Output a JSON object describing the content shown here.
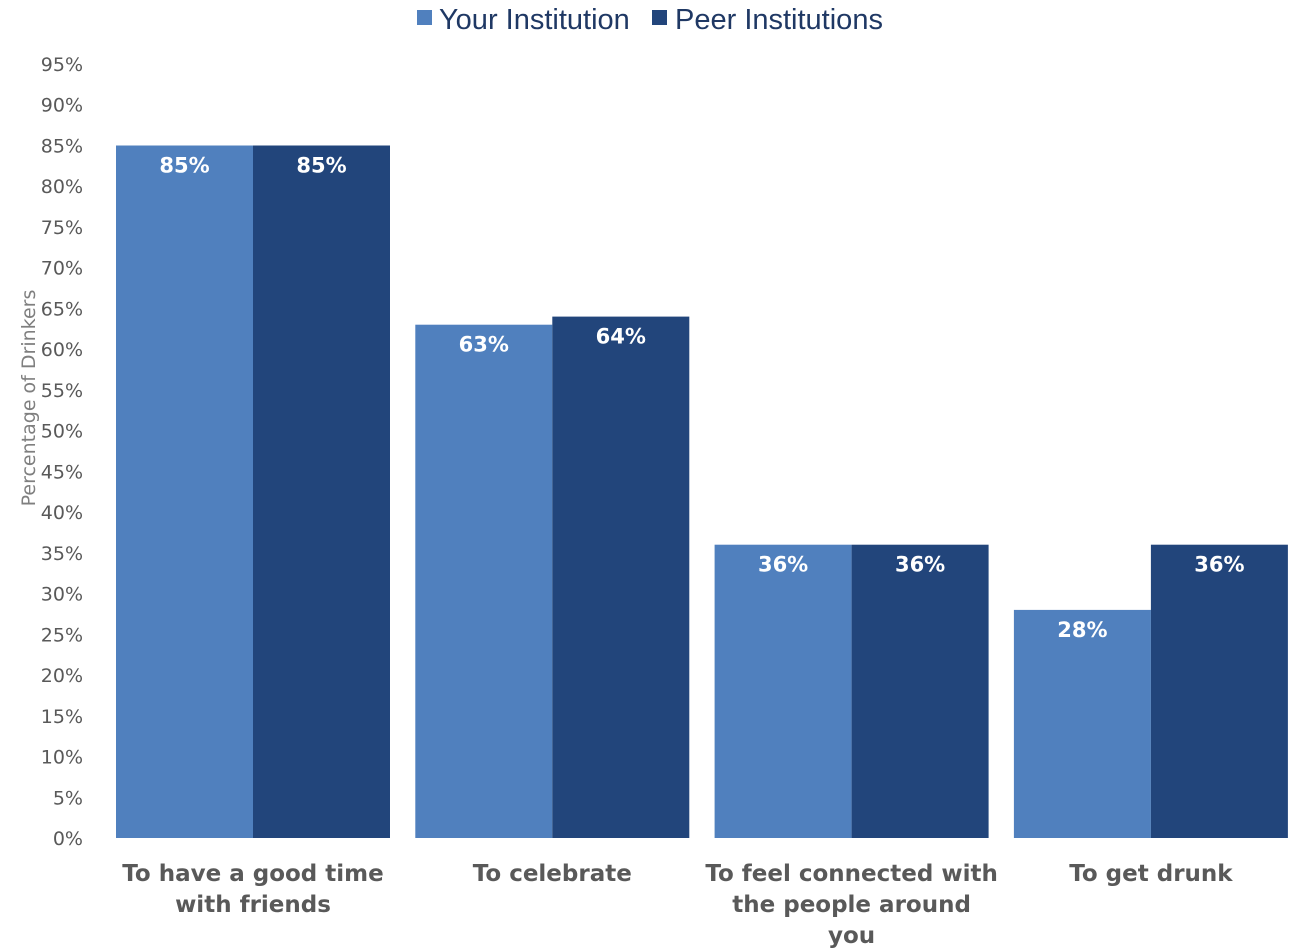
{
  "chart_data": {
    "type": "bar",
    "ylabel": "Percentage of Drinkers",
    "ylim": [
      0,
      95
    ],
    "ytick_step": 5,
    "y_format": "percent",
    "legend_position": "top-center",
    "grid": false,
    "categories": [
      [
        "To have a good time",
        "with friends"
      ],
      [
        "To celebrate"
      ],
      [
        "To feel connected with",
        "the people around",
        "you"
      ],
      [
        "To get drunk"
      ]
    ],
    "series": [
      {
        "name": "Your Institution",
        "color": "#5080be",
        "values": [
          85,
          63,
          36,
          28
        ]
      },
      {
        "name": "Peer Institutions",
        "color": "#22457b",
        "values": [
          85,
          64,
          36,
          36
        ]
      }
    ]
  }
}
